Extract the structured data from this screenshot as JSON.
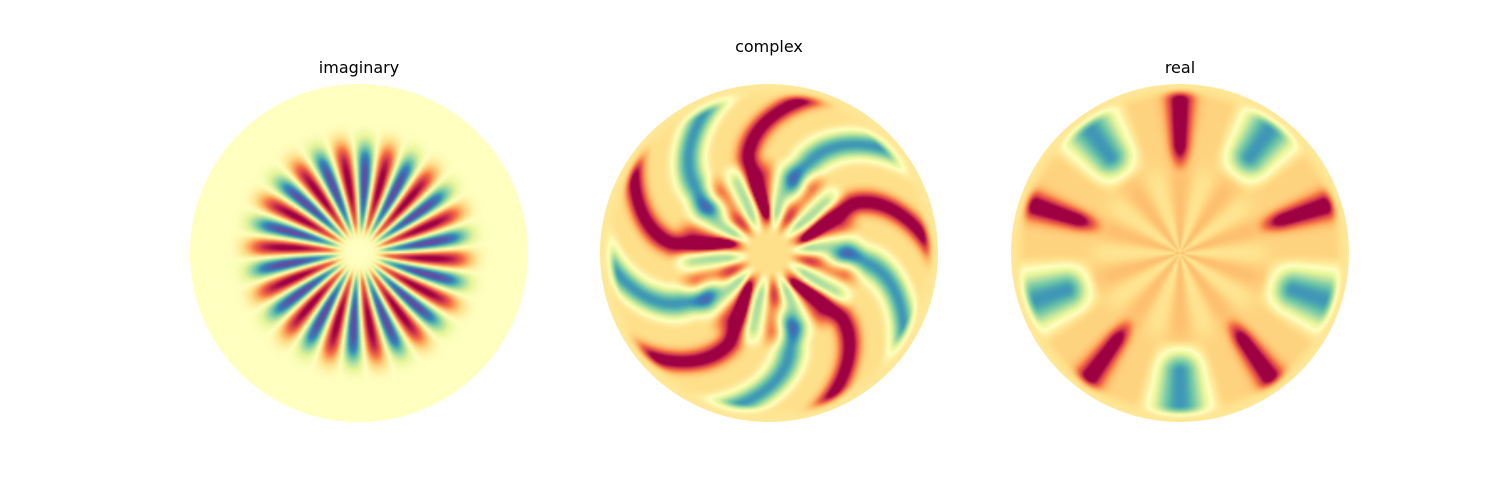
{
  "figure": {
    "colormap": "Spectral",
    "colormap_stops": [
      "#9e0142",
      "#d53e4f",
      "#f46d43",
      "#fdae61",
      "#fee08b",
      "#ffffbf",
      "#e6f598",
      "#abdda4",
      "#66c2a5",
      "#3288bd",
      "#5e4fa2"
    ]
  },
  "chart_data": [
    {
      "type": "heatmap",
      "title": "imaginary",
      "domain": "disk",
      "colormap": "Spectral",
      "pattern": {
        "kind": "rotating-lobes",
        "lobe_pairs": 14,
        "description_free_value_range": [
          -1,
          1
        ],
        "background_value": 0.0
      }
    },
    {
      "type": "heatmap",
      "title": "complex",
      "domain": "disk",
      "colormap": "Spectral",
      "pattern": {
        "kind": "swirling-arms",
        "arms": 10,
        "value_range": [
          -1,
          1
        ],
        "background_value": 0.2
      }
    },
    {
      "type": "heatmap",
      "title": "real",
      "domain": "disk",
      "colormap": "Spectral",
      "pattern": {
        "kind": "star-arms",
        "arms": 10,
        "value_range": [
          -1,
          1
        ],
        "background_value": 0.25
      }
    }
  ]
}
